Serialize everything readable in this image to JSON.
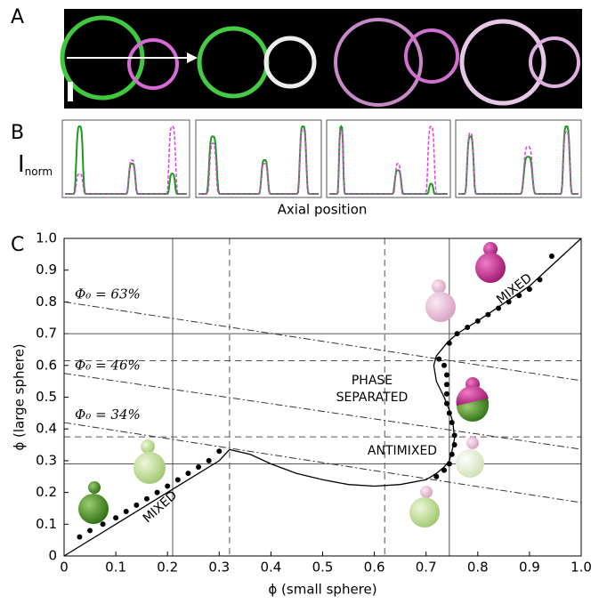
{
  "panel_labels": [
    "A",
    "B",
    "C"
  ],
  "profile_ylabel": "I",
  "profile_ylabel_sub": "norm",
  "profile_xlabel": "Axial position",
  "chart_data": {
    "type": "line",
    "xlabel": "ϕ (small sphere)",
    "ylabel": "ϕ (large sphere)",
    "xlim": [
      0,
      1
    ],
    "ylim": [
      0,
      1
    ],
    "xticks": [
      0,
      0.1,
      0.2,
      0.3,
      0.4,
      0.5,
      0.6,
      0.7,
      0.8,
      0.9,
      {
        "value": 1,
        "label": "1.0"
      }
    ],
    "yticks": [
      0,
      0.1,
      0.2,
      0.3,
      0.4,
      0.5,
      0.6,
      0.7,
      0.8,
      0.9,
      {
        "value": 1,
        "label": "1.0"
      }
    ],
    "series": [
      {
        "color": "#000000",
        "style": "line",
        "x": [
          0,
          0.1,
          0.2,
          0.3,
          0.32,
          0.36,
          0.4,
          0.45,
          0.5,
          0.55,
          0.6,
          0.65,
          0.7,
          0.72,
          0.735,
          0.745,
          0.75,
          0.755,
          0.752,
          0.745,
          0.735,
          0.72,
          0.715,
          0.72,
          0.74,
          0.76,
          0.8,
          0.9,
          1.0
        ],
        "values": [
          0,
          0.1,
          0.2,
          0.3,
          0.335,
          0.32,
          0.29,
          0.26,
          0.24,
          0.225,
          0.22,
          0.225,
          0.24,
          0.26,
          0.28,
          0.3,
          0.33,
          0.37,
          0.42,
          0.46,
          0.5,
          0.55,
          0.6,
          0.63,
          0.67,
          0.7,
          0.74,
          0.85,
          1.0
        ]
      },
      {
        "color": "#000000",
        "style": "markers",
        "x": [
          0.03,
          0.05,
          0.075,
          0.1,
          0.12,
          0.14,
          0.16,
          0.18,
          0.2,
          0.22,
          0.24,
          0.26,
          0.28,
          0.3,
          0.72,
          0.735,
          0.745,
          0.75,
          0.755,
          0.755,
          0.75,
          0.745,
          0.74,
          0.74,
          0.74,
          0.74,
          0.735,
          0.725,
          0.745,
          0.76,
          0.78,
          0.8,
          0.82,
          0.84,
          0.86,
          0.88,
          0.9,
          0.92,
          0.943
        ],
        "values": [
          0.06,
          0.08,
          0.1,
          0.12,
          0.14,
          0.16,
          0.18,
          0.2,
          0.22,
          0.24,
          0.26,
          0.28,
          0.3,
          0.33,
          0.25,
          0.27,
          0.29,
          0.32,
          0.35,
          0.38,
          0.42,
          0.45,
          0.48,
          0.51,
          0.54,
          0.57,
          0.6,
          0.62,
          0.67,
          0.7,
          0.72,
          0.74,
          0.76,
          0.78,
          0.8,
          0.82,
          0.84,
          0.87,
          0.944
        ]
      }
    ],
    "vlines_solid": [
      0.21,
      0.745
    ],
    "vlines_dashed": [
      0.32,
      0.62
    ],
    "hlines_solid": [
      0.29,
      0.7
    ],
    "hlines_dashed": [
      0.375,
      0.615
    ],
    "guides": [
      {
        "label": "Φ₀ = 63%",
        "x": [
          0,
          1
        ],
        "values": [
          0.8,
          0.552
        ]
      },
      {
        "label": "Φ₀ = 46%",
        "x": [
          0,
          1
        ],
        "values": [
          0.575,
          0.336
        ]
      },
      {
        "label": "Φ₀ = 34%",
        "x": [
          0,
          1
        ],
        "values": [
          0.42,
          0.168
        ]
      }
    ],
    "annotations": [
      "MIXED",
      "MIXED",
      "PHASE",
      "SEPARATED",
      "ANTIMIXED"
    ]
  }
}
